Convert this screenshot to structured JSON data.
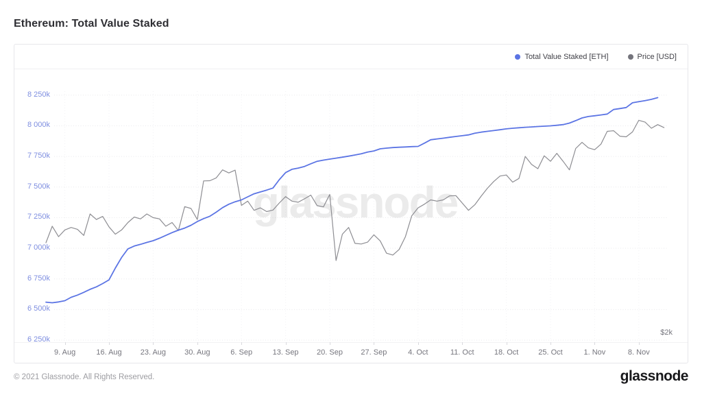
{
  "page": {
    "title": "Ethereum: Total Value Staked",
    "watermark": "glassnode",
    "footer": {
      "copyright": "© 2021 Glassnode. All Rights Reserved.",
      "logo": "glassnode"
    }
  },
  "chart": {
    "right_axis_label": "$2k",
    "legend": [
      {
        "label": "Total Value Staked [ETH]",
        "color": "#5b74e4"
      },
      {
        "label": "Price [USD]",
        "color": "#74747c"
      }
    ]
  },
  "chart_data": {
    "type": "line",
    "title": "Ethereum: Total Value Staked",
    "legend_position": "top-right",
    "grid": "dotted horizontal line at each left-axis tick; very faint dotted vertical line at each weekly x tick",
    "x_unit": "daily samples, day index 0 = 6 Aug 2021, last index ≈ 14 Nov 2021",
    "x_domain_days": [
      0,
      100
    ],
    "x_ticks": [
      {
        "day": 3,
        "label": "9. Aug"
      },
      {
        "day": 10,
        "label": "16. Aug"
      },
      {
        "day": 17,
        "label": "23. Aug"
      },
      {
        "day": 24,
        "label": "30. Aug"
      },
      {
        "day": 31,
        "label": "6. Sep"
      },
      {
        "day": 38,
        "label": "13. Sep"
      },
      {
        "day": 45,
        "label": "20. Sep"
      },
      {
        "day": 52,
        "label": "27. Sep"
      },
      {
        "day": 59,
        "label": "4. Oct"
      },
      {
        "day": 66,
        "label": "11. Oct"
      },
      {
        "day": 73,
        "label": "18. Oct"
      },
      {
        "day": 80,
        "label": "25. Oct"
      },
      {
        "day": 87,
        "label": "1. Nov"
      },
      {
        "day": 94,
        "label": "8. Nov"
      }
    ],
    "y_axis": {
      "side": "left",
      "labels": [
        "8 250k",
        "8 000k",
        "7 750k",
        "7 500k",
        "7 250k",
        "7 000k",
        "6 750k",
        "6 500k",
        "6 250k"
      ],
      "values_k_eth": [
        8250,
        8000,
        7750,
        7500,
        7250,
        7000,
        6750,
        6500,
        6250
      ],
      "range_k": [
        6250,
        8300
      ]
    },
    "right_axis": {
      "side": "right",
      "visible_labels": [
        "$2k"
      ],
      "note": "only the $2k tick label is visible near the bottom-right of the plot"
    },
    "series": [
      {
        "name": "Total Value Staked [ETH]",
        "color": "#5b74e4",
        "axis": "left",
        "unit": "thousand ETH (k)",
        "points": [
          [
            0,
            6560
          ],
          [
            1,
            6555
          ],
          [
            2,
            6562
          ],
          [
            3,
            6572
          ],
          [
            4,
            6600
          ],
          [
            5,
            6618
          ],
          [
            6,
            6640
          ],
          [
            7,
            6665
          ],
          [
            8,
            6685
          ],
          [
            9,
            6712
          ],
          [
            10,
            6742
          ],
          [
            11,
            6838
          ],
          [
            12,
            6925
          ],
          [
            13,
            6995
          ],
          [
            14,
            7018
          ],
          [
            15,
            7032
          ],
          [
            16,
            7048
          ],
          [
            17,
            7062
          ],
          [
            18,
            7082
          ],
          [
            19,
            7105
          ],
          [
            20,
            7128
          ],
          [
            21,
            7148
          ],
          [
            22,
            7165
          ],
          [
            23,
            7188
          ],
          [
            24,
            7218
          ],
          [
            25,
            7242
          ],
          [
            26,
            7262
          ],
          [
            27,
            7295
          ],
          [
            28,
            7332
          ],
          [
            29,
            7360
          ],
          [
            30,
            7380
          ],
          [
            31,
            7395
          ],
          [
            32,
            7420
          ],
          [
            33,
            7445
          ],
          [
            34,
            7460
          ],
          [
            35,
            7475
          ],
          [
            36,
            7492
          ],
          [
            37,
            7560
          ],
          [
            38,
            7618
          ],
          [
            39,
            7645
          ],
          [
            40,
            7655
          ],
          [
            41,
            7668
          ],
          [
            42,
            7690
          ],
          [
            43,
            7710
          ],
          [
            44,
            7720
          ],
          [
            45,
            7728
          ],
          [
            46,
            7736
          ],
          [
            47,
            7744
          ],
          [
            48,
            7752
          ],
          [
            49,
            7762
          ],
          [
            50,
            7772
          ],
          [
            51,
            7785
          ],
          [
            52,
            7795
          ],
          [
            53,
            7812
          ],
          [
            54,
            7818
          ],
          [
            55,
            7822
          ],
          [
            56,
            7825
          ],
          [
            57,
            7827
          ],
          [
            58,
            7830
          ],
          [
            59,
            7832
          ],
          [
            60,
            7858
          ],
          [
            61,
            7886
          ],
          [
            62,
            7893
          ],
          [
            63,
            7899
          ],
          [
            64,
            7906
          ],
          [
            65,
            7913
          ],
          [
            66,
            7919
          ],
          [
            67,
            7926
          ],
          [
            68,
            7939
          ],
          [
            69,
            7948
          ],
          [
            70,
            7955
          ],
          [
            71,
            7961
          ],
          [
            72,
            7968
          ],
          [
            73,
            7975
          ],
          [
            74,
            7980
          ],
          [
            75,
            7984
          ],
          [
            76,
            7988
          ],
          [
            77,
            7991
          ],
          [
            78,
            7994
          ],
          [
            79,
            7997
          ],
          [
            80,
            8000
          ],
          [
            81,
            8004
          ],
          [
            82,
            8010
          ],
          [
            83,
            8022
          ],
          [
            84,
            8042
          ],
          [
            85,
            8064
          ],
          [
            86,
            8076
          ],
          [
            87,
            8082
          ],
          [
            88,
            8089
          ],
          [
            89,
            8096
          ],
          [
            90,
            8133
          ],
          [
            91,
            8141
          ],
          [
            92,
            8149
          ],
          [
            93,
            8188
          ],
          [
            94,
            8197
          ],
          [
            95,
            8206
          ],
          [
            96,
            8216
          ],
          [
            97,
            8230
          ]
        ]
      },
      {
        "name": "Price [USD]",
        "color": "#8d8d92",
        "axis": "right",
        "unit": "drawn values expressed on the left-axis k scale (right USD axis shows only the $2k label)",
        "points": [
          [
            0,
            7045
          ],
          [
            1,
            7180
          ],
          [
            2,
            7095
          ],
          [
            3,
            7150
          ],
          [
            4,
            7170
          ],
          [
            5,
            7155
          ],
          [
            6,
            7105
          ],
          [
            7,
            7280
          ],
          [
            8,
            7235
          ],
          [
            9,
            7260
          ],
          [
            10,
            7175
          ],
          [
            11,
            7115
          ],
          [
            12,
            7150
          ],
          [
            13,
            7210
          ],
          [
            14,
            7255
          ],
          [
            15,
            7240
          ],
          [
            16,
            7280
          ],
          [
            17,
            7250
          ],
          [
            18,
            7240
          ],
          [
            19,
            7180
          ],
          [
            20,
            7210
          ],
          [
            21,
            7145
          ],
          [
            22,
            7340
          ],
          [
            23,
            7325
          ],
          [
            24,
            7235
          ],
          [
            25,
            7550
          ],
          [
            26,
            7552
          ],
          [
            27,
            7575
          ],
          [
            28,
            7640
          ],
          [
            29,
            7615
          ],
          [
            30,
            7638
          ],
          [
            31,
            7350
          ],
          [
            32,
            7385
          ],
          [
            33,
            7310
          ],
          [
            34,
            7330
          ],
          [
            35,
            7300
          ],
          [
            36,
            7312
          ],
          [
            37,
            7370
          ],
          [
            38,
            7422
          ],
          [
            39,
            7385
          ],
          [
            40,
            7376
          ],
          [
            41,
            7404
          ],
          [
            42,
            7434
          ],
          [
            43,
            7348
          ],
          [
            44,
            7338
          ],
          [
            45,
            7440
          ],
          [
            46,
            6900
          ],
          [
            47,
            7115
          ],
          [
            48,
            7170
          ],
          [
            49,
            7040
          ],
          [
            50,
            7035
          ],
          [
            51,
            7050
          ],
          [
            52,
            7110
          ],
          [
            53,
            7060
          ],
          [
            54,
            6960
          ],
          [
            55,
            6945
          ],
          [
            56,
            6990
          ],
          [
            57,
            7095
          ],
          [
            58,
            7265
          ],
          [
            59,
            7330
          ],
          [
            60,
            7360
          ],
          [
            61,
            7395
          ],
          [
            62,
            7385
          ],
          [
            63,
            7395
          ],
          [
            64,
            7428
          ],
          [
            65,
            7430
          ],
          [
            66,
            7370
          ],
          [
            67,
            7310
          ],
          [
            68,
            7355
          ],
          [
            69,
            7425
          ],
          [
            70,
            7490
          ],
          [
            71,
            7545
          ],
          [
            72,
            7590
          ],
          [
            73,
            7598
          ],
          [
            74,
            7540
          ],
          [
            75,
            7570
          ],
          [
            76,
            7750
          ],
          [
            77,
            7685
          ],
          [
            78,
            7650
          ],
          [
            79,
            7755
          ],
          [
            80,
            7710
          ],
          [
            81,
            7775
          ],
          [
            82,
            7710
          ],
          [
            83,
            7640
          ],
          [
            84,
            7815
          ],
          [
            85,
            7865
          ],
          [
            86,
            7820
          ],
          [
            87,
            7805
          ],
          [
            88,
            7850
          ],
          [
            89,
            7955
          ],
          [
            90,
            7960
          ],
          [
            91,
            7915
          ],
          [
            92,
            7910
          ],
          [
            93,
            7950
          ],
          [
            94,
            8045
          ],
          [
            95,
            8030
          ],
          [
            96,
            7980
          ],
          [
            97,
            8010
          ],
          [
            98,
            7985
          ]
        ]
      }
    ]
  },
  "style": {
    "grid_color": "#e9e9ec",
    "vgrid_color": "#f2f2f4",
    "watermark_color": "rgba(30,30,35,0.09)",
    "staked_line_color": "#5b74e4",
    "price_line_color": "#8d8d92"
  }
}
